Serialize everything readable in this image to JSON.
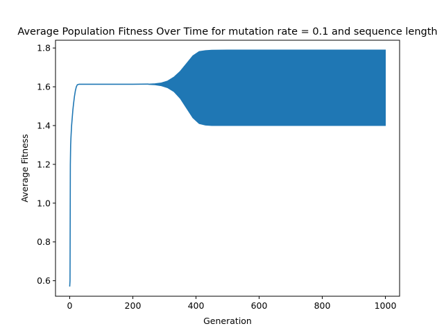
{
  "chart_data": {
    "type": "line",
    "title": "Average Population Fitness Over Time for mutation rate = 0.1 and sequence length",
    "xlabel": "Generation",
    "ylabel": "Average Fitness",
    "xlim": [
      -45,
      1045
    ],
    "ylim": [
      0.52,
      1.84
    ],
    "grid": false,
    "x_ticks": [
      0,
      200,
      400,
      600,
      800,
      1000
    ],
    "y_ticks": [
      0.6,
      0.8,
      1.0,
      1.2,
      1.4,
      1.6,
      1.8
    ],
    "x_tick_labels": [
      "0",
      "200",
      "400",
      "600",
      "800",
      "1000"
    ],
    "y_tick_labels": [
      "0.6",
      "0.8",
      "1.0",
      "1.2",
      "1.4",
      "1.6",
      "1.8"
    ],
    "series": [
      {
        "color": "#1f77b4",
        "x": [
          0,
          1,
          2,
          3,
          4,
          5,
          6,
          8,
          10,
          12,
          15,
          18,
          21,
          24,
          27,
          30,
          35,
          40,
          50,
          100,
          150,
          200,
          250
        ],
        "y": [
          0.57,
          0.6,
          1.2,
          1.3,
          1.34,
          1.37,
          1.4,
          1.44,
          1.48,
          1.51,
          1.55,
          1.58,
          1.6,
          1.61,
          1.612,
          1.613,
          1.613,
          1.613,
          1.613,
          1.613,
          1.613,
          1.613,
          1.614
        ]
      }
    ],
    "oscillation_envelope": {
      "x": [
        250,
        270,
        290,
        310,
        330,
        350,
        370,
        390,
        410,
        430,
        450,
        500,
        600,
        800,
        1000
      ],
      "upper": [
        1.614,
        1.616,
        1.62,
        1.63,
        1.65,
        1.68,
        1.72,
        1.76,
        1.782,
        1.787,
        1.789,
        1.79,
        1.79,
        1.79,
        1.79
      ],
      "lower": [
        1.612,
        1.61,
        1.605,
        1.595,
        1.575,
        1.54,
        1.49,
        1.44,
        1.41,
        1.402,
        1.4,
        1.4,
        1.4,
        1.4,
        1.4
      ]
    }
  }
}
